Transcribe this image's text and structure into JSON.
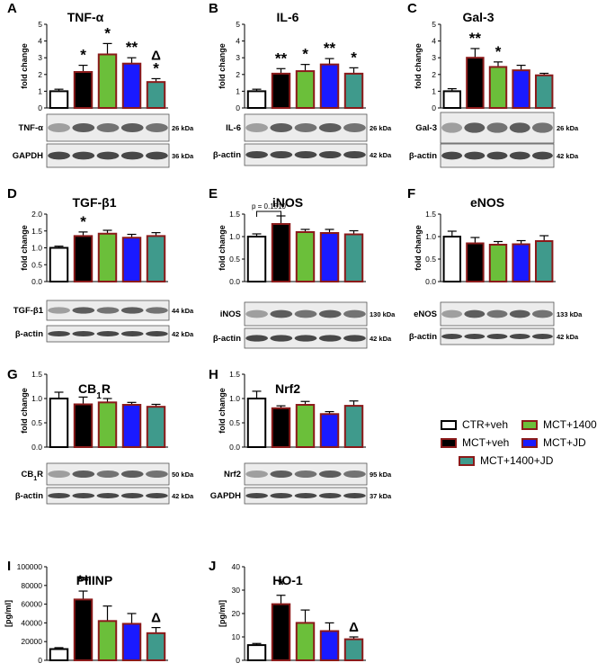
{
  "colors": {
    "ctr": "#ffffff",
    "mct": "#000000",
    "mct1400": "#6bbf3a",
    "mctjd": "#1a1aff",
    "combo": "#3f9a8c",
    "border": "#8b1a1a"
  },
  "legend": {
    "items": [
      {
        "label": "CTR+veh",
        "color": "#ffffff",
        "border": "#000000"
      },
      {
        "label": "MCT+1400",
        "color": "#6bbf3a",
        "border": "#8b1a1a"
      },
      {
        "label": "MCT+veh",
        "color": "#000000",
        "border": "#8b1a1a"
      },
      {
        "label": "MCT+JD",
        "color": "#1a1aff",
        "border": "#8b1a1a"
      },
      {
        "label": "MCT+1400+JD",
        "color": "#3f9a8c",
        "border": "#8b1a1a"
      }
    ]
  },
  "chart_data": [
    {
      "type": "bar",
      "panel": "A",
      "title": "TNF-α",
      "ylabel": "fold change",
      "ylim": [
        0,
        5
      ],
      "yticks": [
        0,
        1,
        2,
        3,
        4,
        5
      ],
      "values": [
        1.0,
        2.15,
        3.2,
        2.65,
        1.55
      ],
      "errors": [
        0.12,
        0.4,
        0.65,
        0.35,
        0.2
      ],
      "annotations": [
        "",
        "*",
        "*",
        "**",
        "Δ\n*"
      ],
      "blots": [
        {
          "label": "TNF-α",
          "size": "26 kDa"
        },
        {
          "label": "GAPDH",
          "size": "36 kDa"
        }
      ]
    },
    {
      "type": "bar",
      "panel": "B",
      "title": "IL-6",
      "ylabel": "fold change",
      "ylim": [
        0,
        5
      ],
      "yticks": [
        0,
        1,
        2,
        3,
        4,
        5
      ],
      "values": [
        1.0,
        2.05,
        2.2,
        2.6,
        2.05
      ],
      "errors": [
        0.12,
        0.3,
        0.4,
        0.35,
        0.35
      ],
      "annotations": [
        "",
        "**",
        "*",
        "**",
        "*"
      ],
      "blots": [
        {
          "label": "IL-6",
          "size": "26 kDa"
        },
        {
          "label": "β-actin",
          "size": "42 kDa"
        }
      ]
    },
    {
      "type": "bar",
      "panel": "C",
      "title": "Gal-3",
      "ylabel": "fold change",
      "ylim": [
        0,
        5
      ],
      "yticks": [
        0,
        1,
        2,
        3,
        4,
        5
      ],
      "values": [
        1.0,
        3.0,
        2.45,
        2.25,
        1.95
      ],
      "errors": [
        0.15,
        0.55,
        0.3,
        0.3,
        0.12
      ],
      "annotations": [
        "",
        "**",
        "*",
        "",
        ""
      ],
      "blots": [
        {
          "label": "Gal-3",
          "size": "26 kDa"
        },
        {
          "label": "β-actin",
          "size": "42 kDa"
        }
      ]
    },
    {
      "type": "bar",
      "panel": "D",
      "title": "TGF-β1",
      "ylabel": "fold change",
      "ylim": [
        0,
        2.0
      ],
      "yticks": [
        "0.0",
        "0.5",
        "1.0",
        "1.5",
        "2.0"
      ],
      "values": [
        1.0,
        1.35,
        1.42,
        1.3,
        1.35
      ],
      "errors": [
        0.05,
        0.12,
        0.1,
        0.1,
        0.1
      ],
      "annotations": [
        "",
        "*",
        "",
        "",
        ""
      ],
      "blots": [
        {
          "label": "TGF-β1",
          "size": "44 kDa"
        },
        {
          "label": "β-actin",
          "size": "42 kDa"
        }
      ]
    },
    {
      "type": "bar",
      "panel": "E",
      "title": "iNOS",
      "ylabel": "fold change",
      "ylim": [
        0,
        1.5
      ],
      "yticks": [
        "0.0",
        "0.5",
        "1.0",
        "1.5"
      ],
      "values": [
        1.0,
        1.28,
        1.1,
        1.08,
        1.05
      ],
      "errors": [
        0.06,
        0.18,
        0.06,
        0.08,
        0.08
      ],
      "annotations": [
        "",
        "",
        "",
        "",
        ""
      ],
      "bracket": {
        "text": "p = 0.1510",
        "from": 0,
        "to": 1
      },
      "blots": [
        {
          "label": "iNOS",
          "size": "130 kDa"
        },
        {
          "label": "β-actin",
          "size": "42 kDa"
        }
      ]
    },
    {
      "type": "bar",
      "panel": "F",
      "title": "eNOS",
      "ylabel": "fold change",
      "ylim": [
        0,
        1.5
      ],
      "yticks": [
        "0.0",
        "0.5",
        "1.0",
        "1.5"
      ],
      "values": [
        1.0,
        0.85,
        0.82,
        0.83,
        0.9
      ],
      "errors": [
        0.12,
        0.13,
        0.07,
        0.08,
        0.12
      ],
      "annotations": [
        "",
        "",
        "",
        "",
        ""
      ],
      "blots": [
        {
          "label": "eNOS",
          "size": "133 kDa"
        },
        {
          "label": "β-actin",
          "size": "42 kDa"
        }
      ]
    },
    {
      "type": "bar",
      "panel": "G",
      "title": "CB1R",
      "title_main": "CB",
      "title_sub": "1",
      "title_end": "R",
      "ylabel": "fold change",
      "ylim": [
        0,
        1.5
      ],
      "yticks": [
        "0.0",
        "0.5",
        "1.0",
        "1.5"
      ],
      "values": [
        1.0,
        0.88,
        0.92,
        0.87,
        0.83
      ],
      "errors": [
        0.13,
        0.15,
        0.08,
        0.05,
        0.05
      ],
      "annotations": [
        "",
        "",
        "",
        "",
        ""
      ],
      "blots": [
        {
          "label": "CB1R",
          "size": "50 kDa"
        },
        {
          "label": "β-actin",
          "size": "42 kDa"
        }
      ]
    },
    {
      "type": "bar",
      "panel": "H",
      "title": "Nrf2",
      "ylabel": "fold change",
      "ylim": [
        0,
        1.5
      ],
      "yticks": [
        "0.0",
        "0.5",
        "1.0",
        "1.5"
      ],
      "values": [
        1.0,
        0.8,
        0.87,
        0.68,
        0.85
      ],
      "errors": [
        0.15,
        0.05,
        0.07,
        0.05,
        0.1
      ],
      "annotations": [
        "",
        "",
        "",
        "",
        ""
      ],
      "blots": [
        {
          "label": "Nrf2",
          "size": "95 kDa"
        },
        {
          "label": "GAPDH",
          "size": "37 kDa"
        }
      ]
    },
    {
      "type": "bar",
      "panel": "I",
      "title": "PIIINP",
      "ylabel": "[pg/ml]",
      "ylim": [
        0,
        100000
      ],
      "yticks": [
        "0",
        "20000",
        "40000",
        "60000",
        "80000",
        "100000"
      ],
      "values": [
        12000,
        65000,
        42000,
        39000,
        29000
      ],
      "errors": [
        1500,
        9000,
        16000,
        11000,
        6000
      ],
      "annotations": [
        "",
        "**",
        "",
        "",
        "Δ"
      ],
      "blots": []
    },
    {
      "type": "bar",
      "panel": "J",
      "title": "HO-1",
      "ylabel": "[pg/ml]",
      "ylim": [
        0,
        40
      ],
      "yticks": [
        "0",
        "10",
        "20",
        "30",
        "40"
      ],
      "values": [
        6.5,
        24,
        16,
        12.5,
        9
      ],
      "errors": [
        0.7,
        3.8,
        5.5,
        3.5,
        1.0
      ],
      "annotations": [
        "",
        "*",
        "",
        "",
        "Δ"
      ],
      "blots": []
    }
  ]
}
